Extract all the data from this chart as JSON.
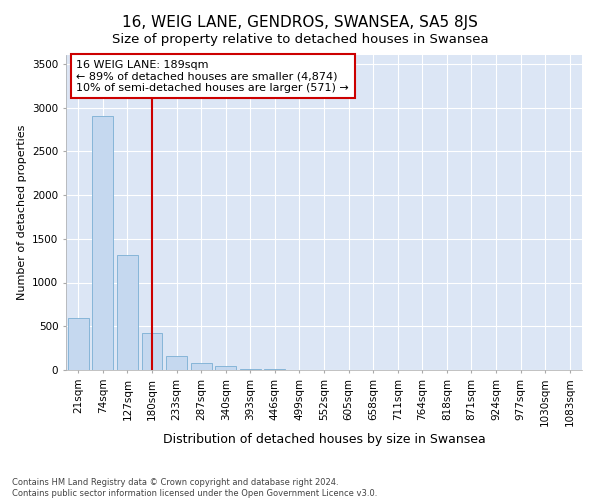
{
  "title": "16, WEIG LANE, GENDROS, SWANSEA, SA5 8JS",
  "subtitle": "Size of property relative to detached houses in Swansea",
  "xlabel": "Distribution of detached houses by size in Swansea",
  "ylabel": "Number of detached properties",
  "categories": [
    "21sqm",
    "74sqm",
    "127sqm",
    "180sqm",
    "233sqm",
    "287sqm",
    "340sqm",
    "393sqm",
    "446sqm",
    "499sqm",
    "552sqm",
    "605sqm",
    "658sqm",
    "711sqm",
    "764sqm",
    "818sqm",
    "871sqm",
    "924sqm",
    "977sqm",
    "1030sqm",
    "1083sqm"
  ],
  "values": [
    590,
    2900,
    1310,
    420,
    160,
    75,
    45,
    15,
    8,
    3,
    0,
    0,
    0,
    0,
    0,
    0,
    0,
    0,
    0,
    0,
    0
  ],
  "bar_color": "#c5d8ef",
  "bar_edge_color": "#7aafd4",
  "vline_x": 3.0,
  "vline_color": "#cc0000",
  "annotation_text": "16 WEIG LANE: 189sqm\n← 89% of detached houses are smaller (4,874)\n10% of semi-detached houses are larger (571) →",
  "annotation_box_color": "#ffffff",
  "annotation_box_edge_color": "#cc0000",
  "ylim": [
    0,
    3600
  ],
  "yticks": [
    0,
    500,
    1000,
    1500,
    2000,
    2500,
    3000,
    3500
  ],
  "title_fontsize": 11,
  "subtitle_fontsize": 9.5,
  "ylabel_fontsize": 8,
  "xlabel_fontsize": 9,
  "tick_fontsize": 7.5,
  "annot_fontsize": 8,
  "footer_text": "Contains HM Land Registry data © Crown copyright and database right 2024.\nContains public sector information licensed under the Open Government Licence v3.0.",
  "background_color": "#ffffff",
  "plot_bg_color": "#dce6f5"
}
